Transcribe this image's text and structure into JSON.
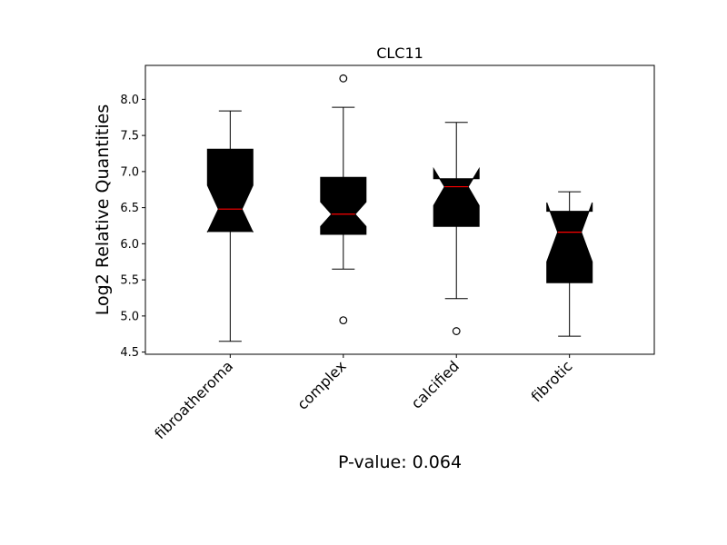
{
  "chart_data": {
    "type": "boxplot",
    "title": "CLC11",
    "ylabel": "Log2 Relative Quantities",
    "xlabel": "P-value: 0.064",
    "ylim": [
      4.47,
      8.47
    ],
    "yticks": [
      4.5,
      5.0,
      5.5,
      6.0,
      6.5,
      7.0,
      7.5,
      8.0
    ],
    "ytick_labels": [
      "4.5",
      "5.0",
      "5.5",
      "6.0",
      "6.5",
      "7.0",
      "7.5",
      "8.0"
    ],
    "categories": [
      "fibroatheroma",
      "complex",
      "calcified",
      "fibrotic"
    ],
    "notched": true,
    "box_color": "#000000",
    "median_color": "#ff0000",
    "boxes": [
      {
        "label": "fibroatheroma",
        "whislo": 4.65,
        "q1": 6.17,
        "med": 6.48,
        "q3": 7.31,
        "whishi": 7.84,
        "notch_lo": 6.16,
        "notch_hi": 6.81,
        "fliers": []
      },
      {
        "label": "complex",
        "whislo": 5.65,
        "q1": 6.13,
        "med": 6.41,
        "q3": 6.92,
        "whishi": 7.89,
        "notch_lo": 6.24,
        "notch_hi": 6.58,
        "fliers": [
          8.29,
          4.94
        ]
      },
      {
        "label": "calcified",
        "whislo": 5.24,
        "q1": 6.24,
        "med": 6.79,
        "q3": 6.9,
        "whishi": 7.68,
        "notch_lo": 6.53,
        "notch_hi": 7.04,
        "fliers": [
          4.79
        ]
      },
      {
        "label": "fibrotic",
        "whislo": 4.72,
        "q1": 5.46,
        "med": 6.16,
        "q3": 6.45,
        "whishi": 6.72,
        "notch_lo": 5.75,
        "notch_hi": 6.57,
        "fliers": []
      }
    ]
  }
}
